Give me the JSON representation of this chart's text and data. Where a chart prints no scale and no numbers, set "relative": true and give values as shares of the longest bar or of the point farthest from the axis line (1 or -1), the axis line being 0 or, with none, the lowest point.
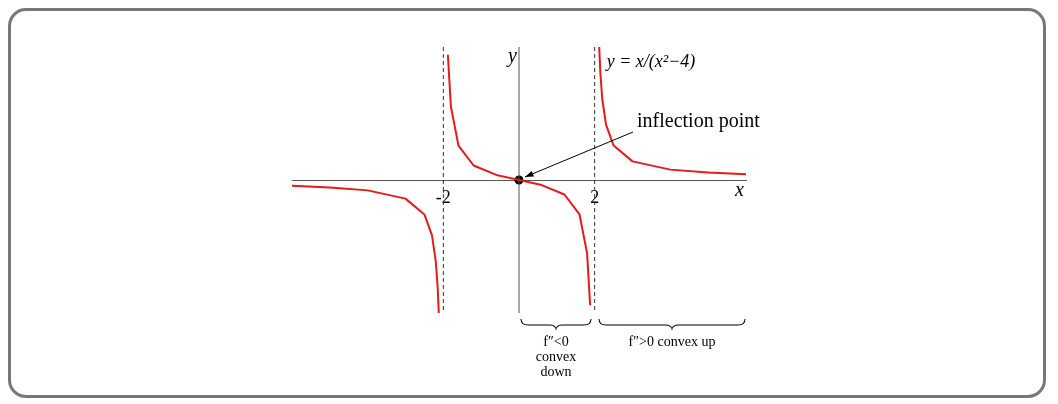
{
  "chart_data": {
    "type": "line",
    "relative": true,
    "xlim": [
      -6,
      6
    ],
    "xticks": [
      -2,
      2
    ],
    "xlabel": "x",
    "ylabel": "y",
    "line_style": "solid",
    "marker": "none",
    "series": [
      {
        "color": "#e41a1c",
        "x": [
          -6,
          -5,
          -4,
          -3,
          -2.5,
          -2.3,
          -2.2,
          -2.15,
          -2.12
        ],
        "values": [
          -0.044,
          -0.056,
          -0.078,
          -0.14,
          -0.259,
          -0.416,
          -0.611,
          -0.806,
          -1
        ]
      },
      {
        "color": "#e41a1c",
        "x": [
          -1.88,
          -1.8,
          -1.6,
          -1.2,
          -0.6,
          0,
          0.6,
          1.2,
          1.6,
          1.8,
          1.88
        ],
        "values": [
          0.942,
          0.552,
          0.259,
          0.109,
          0.038,
          0,
          -0.038,
          -0.109,
          -0.259,
          -0.552,
          -0.942
        ]
      },
      {
        "color": "#e41a1c",
        "x": [
          2.12,
          2.15,
          2.2,
          2.3,
          2.5,
          3,
          4,
          5,
          6
        ],
        "values": [
          1,
          0.806,
          0.611,
          0.416,
          0.259,
          0.14,
          0.078,
          0.056,
          0.044
        ]
      },
      {
        "type": "scatter",
        "marker": "circle",
        "color": "#000000",
        "x": [
          0
        ],
        "values": [
          0
        ]
      }
    ],
    "ref_lines": [
      {
        "axis": "x",
        "value": -2,
        "line_style": "dashed",
        "color": "#333333"
      },
      {
        "axis": "x",
        "value": 2,
        "line_style": "dashed",
        "color": "#333333"
      }
    ],
    "annotations": [
      {
        "text": "inflection point",
        "x": 0,
        "y": 0
      },
      "y = x/(x²−4)",
      "f″<0 convex down",
      "f″>0 convex up"
    ]
  }
}
